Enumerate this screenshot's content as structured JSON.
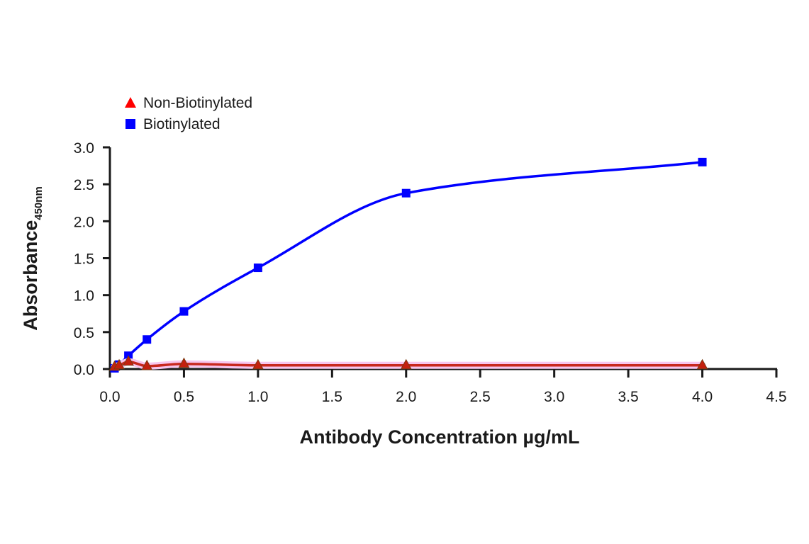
{
  "chart_data": {
    "type": "line",
    "title": "",
    "xlabel": "Antibody Concentration µg/mL",
    "ylabel": "Absorbance",
    "ylabel_subscript": "450nm",
    "xlim": [
      0,
      4.5
    ],
    "ylim": [
      0,
      3.0
    ],
    "x_ticks": [
      "0.0",
      "0.5",
      "1.0",
      "1.5",
      "2.0",
      "2.5",
      "3.0",
      "3.5",
      "4.0",
      "4.5"
    ],
    "y_ticks": [
      "0.0",
      "0.5",
      "1.0",
      "1.5",
      "2.0",
      "2.5",
      "3.0"
    ],
    "grid": false,
    "legend_position": "top-left",
    "series": [
      {
        "name": "Non-Biotinylated",
        "marker": "triangle",
        "color": "#ff0000",
        "line_color": "#c8281e",
        "x": [
          0.03125,
          0.0625,
          0.125,
          0.25,
          0.5,
          1.0,
          2.0,
          4.0
        ],
        "values": [
          0.03,
          0.05,
          0.1,
          0.04,
          0.07,
          0.05,
          0.05,
          0.05
        ]
      },
      {
        "name": "Biotinylated",
        "marker": "square",
        "color": "#0000ff",
        "line_color": "#0000ff",
        "x": [
          0.03125,
          0.0625,
          0.125,
          0.25,
          0.5,
          1.0,
          2.0,
          4.0
        ],
        "values": [
          0.01,
          0.06,
          0.18,
          0.4,
          0.78,
          1.37,
          2.38,
          2.8
        ]
      }
    ]
  },
  "legend": {
    "items": [
      {
        "label": "Non-Biotinylated",
        "icon": "red-triangle",
        "color": "#ff0000"
      },
      {
        "label": "Biotinylated",
        "icon": "blue-square",
        "color": "#0000ff"
      }
    ]
  },
  "axes": {
    "x_title": "Antibody Concentration µg/mL",
    "y_title": "Absorbance",
    "y_title_sub": "450nm"
  }
}
